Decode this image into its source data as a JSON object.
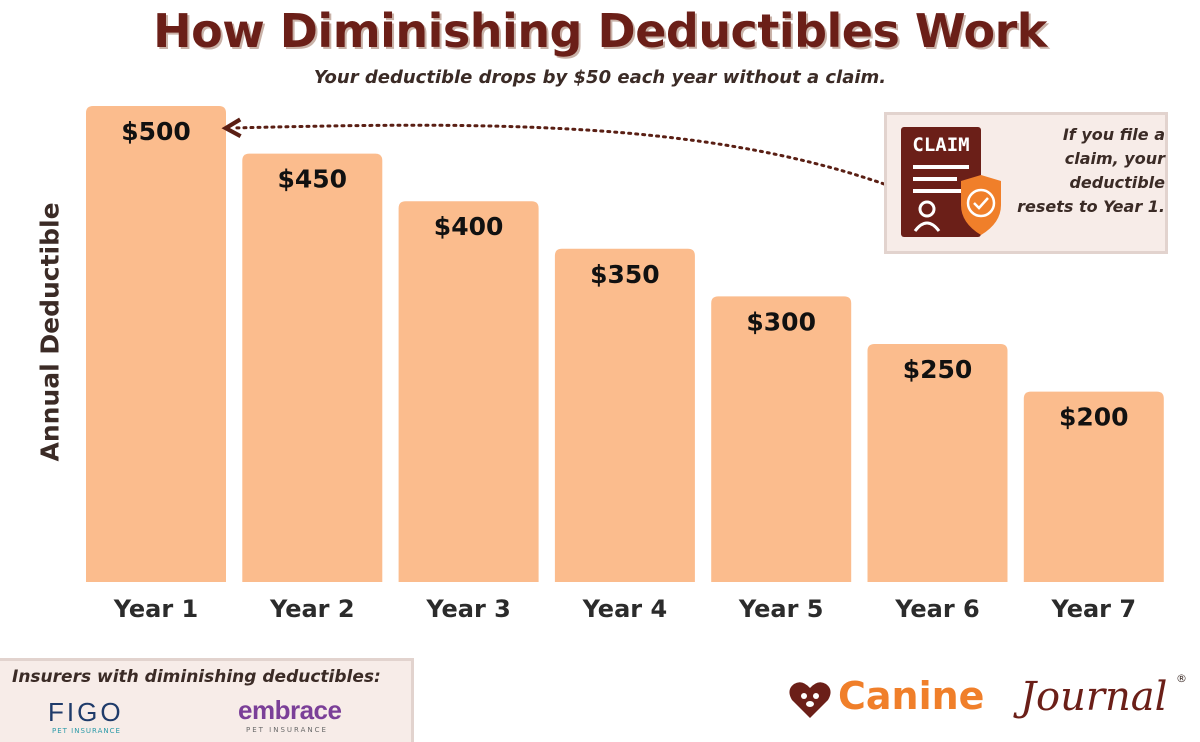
{
  "header": {
    "title": "How Diminishing Deductibles Work",
    "subtitle": "Your deductible drops by $50 each year without a claim."
  },
  "chart_data": {
    "type": "bar",
    "categories": [
      "Year 1",
      "Year 2",
      "Year 3",
      "Year 4",
      "Year 5",
      "Year 6",
      "Year 7"
    ],
    "values": [
      500,
      450,
      400,
      350,
      300,
      250,
      200
    ],
    "value_labels": [
      "$500",
      "$450",
      "$400",
      "$350",
      "$300",
      "$250",
      "$200"
    ],
    "title": "How Diminishing Deductibles Work",
    "subtitle": "Your deductible drops by $50 each year without a claim.",
    "xlabel": "",
    "ylabel": "Annual Deductible",
    "ylim": [
      0,
      500
    ],
    "grid": false,
    "legend": "none",
    "bar_color": "#fbbc8d",
    "annotation": "If you file a claim, your deductible resets to Year 1."
  },
  "claim_callout": {
    "icon_text": "CLAIM",
    "lines": [
      "If you file a",
      "claim, your",
      "deductible",
      "resets to Year 1."
    ]
  },
  "insurers": {
    "title": "Insurers with diminishing deductibles:",
    "figo": {
      "name": "FIGO",
      "tagline": "PET INSURANCE"
    },
    "embrace": {
      "name": "embrace",
      "tagline": "PET INSURANCE"
    }
  },
  "brand": {
    "word1": "Canine",
    "word2": "Journal",
    "registered": "®"
  },
  "colors": {
    "title": "#6b1f18",
    "bar": "#fbbc8d",
    "accent": "#f07f2a",
    "arrow": "#5a1f14",
    "panel": "#f7ece8"
  }
}
